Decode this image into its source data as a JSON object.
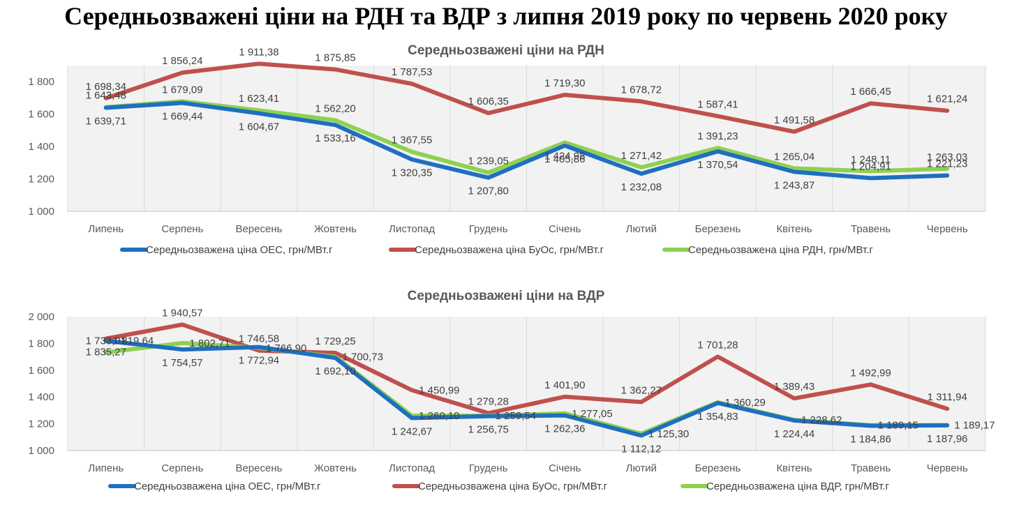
{
  "title": "Середньозважені ціни на РДН та ВДР з липня 2019 року по червень 2020 року",
  "chart_data": [
    {
      "type": "line",
      "title": "Середньозважені ціни на РДН",
      "categories": [
        "Липень",
        "Серпень",
        "Вересень",
        "Жовтень",
        "Листопад",
        "Грудень",
        "Січень",
        "Лютий",
        "Березень",
        "Квітень",
        "Травень",
        "Червень"
      ],
      "ylim": [
        1000,
        1900
      ],
      "yticks": [
        1000,
        1200,
        1400,
        1600,
        1800
      ],
      "ytick_labels": [
        "1 000",
        "1 200",
        "1 400",
        "1 600",
        "1 800"
      ],
      "grid": "vertical",
      "legend_position": "bottom",
      "series": [
        {
          "name": "Середньозважена ціна ОЕС, грн/МВт.г",
          "color": "#1f6fbf",
          "values": [
            1639.71,
            1669.44,
            1604.67,
            1533.16,
            1320.35,
            1207.8,
            1405.86,
            1232.08,
            1370.54,
            1243.87,
            1204.91,
            1221.23
          ],
          "labels": [
            "1 639,71",
            "1 669,44",
            "1 604,67",
            "1 533,16",
            "1 320,35",
            "1 207,80",
            "1 405,86",
            "1 232,08",
            "1 370,54",
            "1 243,87",
            "1 204,91",
            "1 221,23"
          ]
        },
        {
          "name": "Середньозважена ціна БуОс, грн/МВт.г",
          "color": "#c0504d",
          "values": [
            1698.34,
            1856.24,
            1911.38,
            1875.85,
            1787.53,
            1606.35,
            1719.3,
            1678.72,
            1587.41,
            1491.58,
            1666.45,
            1621.24
          ],
          "labels": [
            "1 698,34",
            "1 856,24",
            "1 911,38",
            "1 875,85",
            "1 787,53",
            "1 606,35",
            "1 719,30",
            "1 678,72",
            "1 587,41",
            "1 491,58",
            "1 666,45",
            "1 621,24"
          ]
        },
        {
          "name": "Середньозважена ціна РДН, грн/МВт.г",
          "color": "#8ed152",
          "values": [
            1643.48,
            1679.09,
            1623.41,
            1562.2,
            1367.55,
            1239.05,
            1424.98,
            1271.42,
            1391.23,
            1265.04,
            1248.11,
            1263.03
          ],
          "labels": [
            "1 643,48",
            "1 679,09",
            "1 623,41",
            "1 562,20",
            "1 367,55",
            "1 239,05",
            "1 424,98",
            "1 271,42",
            "1 391,23",
            "1 265,04",
            "1 248,11",
            "1 263,03"
          ]
        }
      ]
    },
    {
      "type": "line",
      "title": "Середньозважені ціни на ВДР",
      "categories": [
        "Липень",
        "Серпень",
        "Вересень",
        "Жовтень",
        "Листопад",
        "Грудень",
        "Січень",
        "Лютий",
        "Березень",
        "Квітень",
        "Травень",
        "Червень"
      ],
      "ylim": [
        1000,
        2000
      ],
      "yticks": [
        1000,
        1200,
        1400,
        1600,
        1800,
        2000
      ],
      "ytick_labels": [
        "1 000",
        "1 200",
        "1 400",
        "1 600",
        "1 800",
        "2 000"
      ],
      "grid": "vertical",
      "legend_position": "bottom",
      "series": [
        {
          "name": "Середньозважена ціна ОЕС, грн/МВт.г",
          "color": "#1f6fbf",
          "values": [
            1819.64,
            1754.57,
            1772.94,
            1692.1,
            1242.67,
            1256.75,
            1262.36,
            1112.12,
            1354.83,
            1224.44,
            1184.86,
            1187.96
          ],
          "labels": [
            "1 819,64",
            "1 754,57",
            "1 772,94",
            "1 692,10",
            "1 242,67",
            "1 256,75",
            "1 262,36",
            "1 112,12",
            "1 354,83",
            "1 224,44",
            "1 184,86",
            "1 187,96"
          ]
        },
        {
          "name": "Середньозважена ціна БуОс, грн/МВт.г",
          "color": "#c0504d",
          "values": [
            1835.27,
            1940.57,
            1746.58,
            1729.25,
            1450.99,
            1279.28,
            1401.9,
            1362.27,
            1701.28,
            1389.43,
            1492.99,
            1311.94
          ],
          "labels": [
            "1 835,27",
            "1 940,57",
            "1 746,58",
            "1 729,25",
            "1 450,99",
            "1 279,28",
            "1 401,90",
            "1 362,27",
            "1 701,28",
            "1 389,43",
            "1 492,99",
            "1 311,94"
          ]
        },
        {
          "name": "Середньозважена ціна ВДР, грн/МВт.г",
          "color": "#8ed152",
          "values": [
            1733.01,
            1802.71,
            1766.9,
            1700.73,
            1260.1,
            1259.54,
            1277.05,
            1125.3,
            1360.29,
            1228.62,
            1189.15,
            1189.17
          ],
          "labels": [
            "1 733,01",
            "1 802,71",
            "1 766,90",
            "1 700,73",
            "1 260,10",
            "1 259,54",
            "1 277,05",
            "1 125,30",
            "1 360,29",
            "1 228,62",
            "1 189,15",
            "1 189,17"
          ]
        }
      ]
    }
  ]
}
